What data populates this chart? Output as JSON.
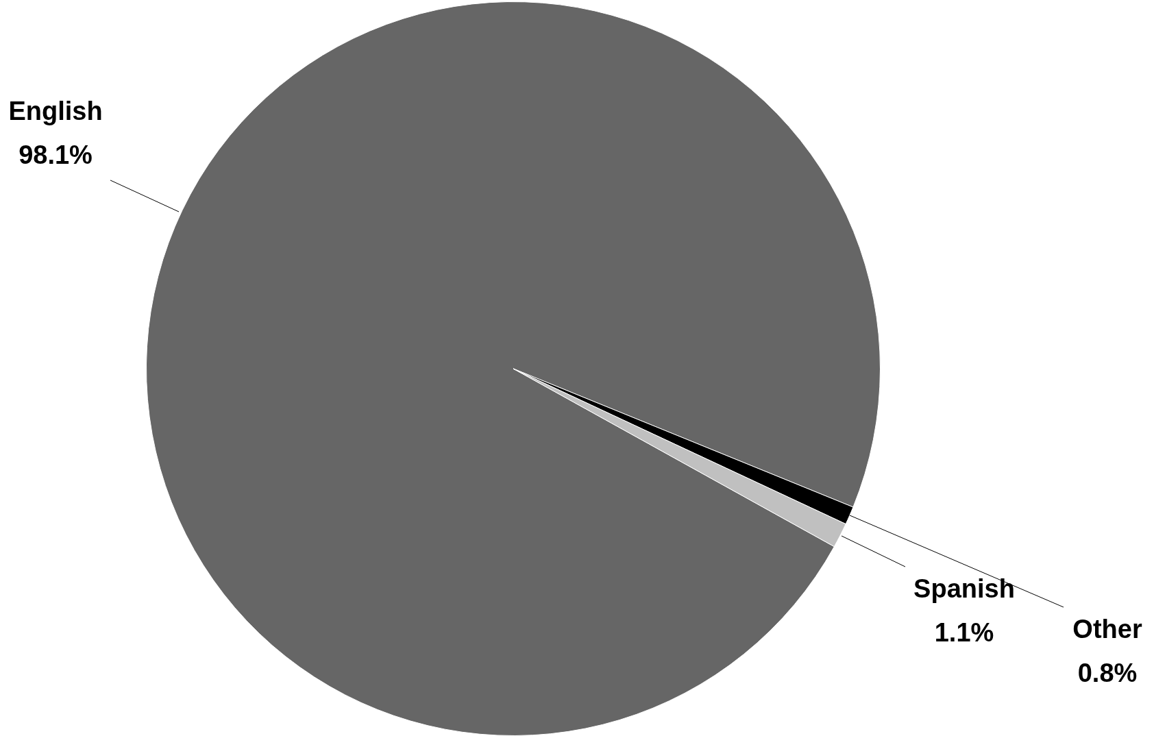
{
  "chart_data": {
    "type": "pie",
    "categories": [
      "English",
      "Other",
      "Spanish"
    ],
    "values": [
      98.1,
      0.8,
      1.1
    ],
    "colors": [
      "#666666",
      "#000000",
      "#c0c0c0"
    ],
    "value_labels": [
      "98.1%",
      "0.8%",
      "1.1%"
    ],
    "legend": false
  }
}
